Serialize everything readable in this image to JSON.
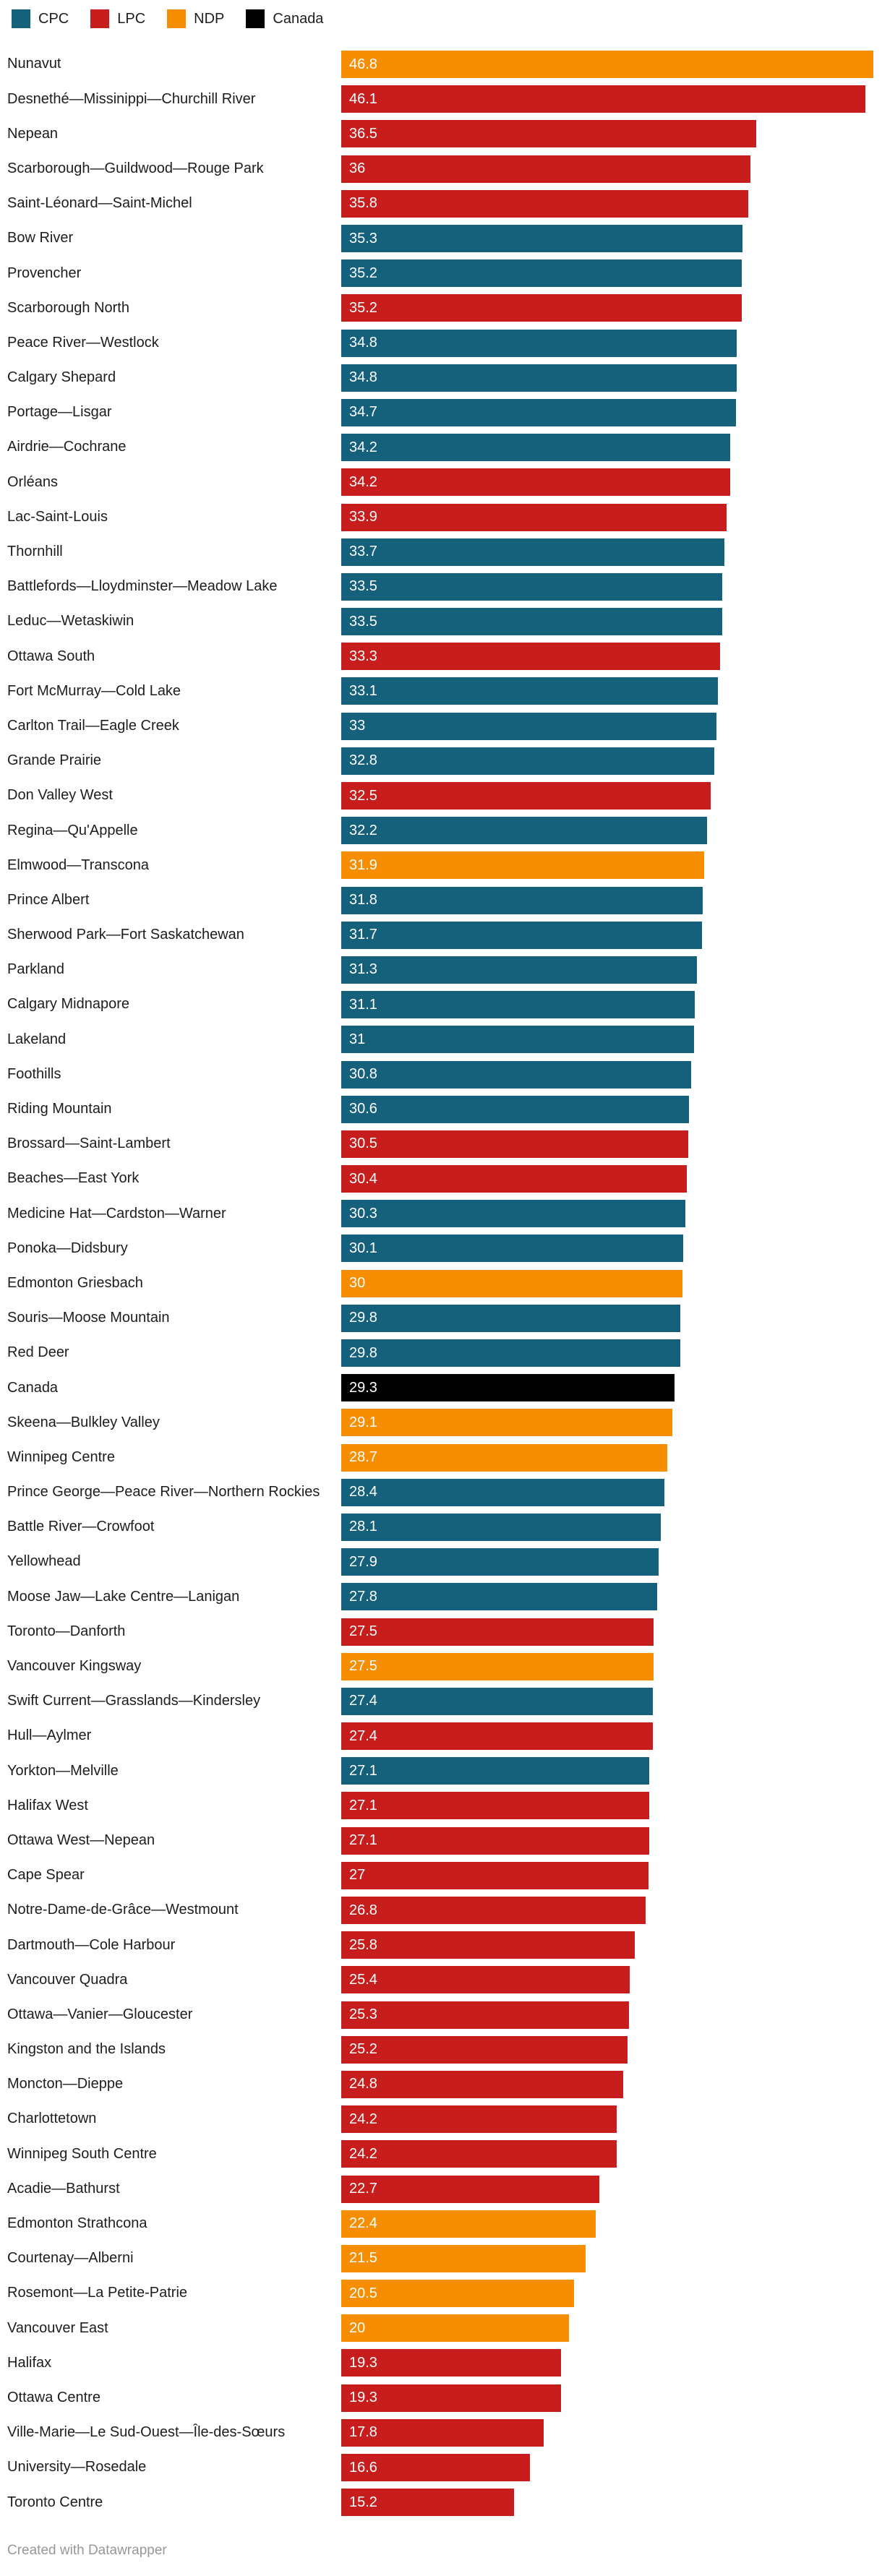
{
  "legend": {
    "items": [
      {
        "id": "CPC",
        "label": "CPC",
        "color": "#15607A"
      },
      {
        "id": "LPC",
        "label": "LPC",
        "color": "#C71E1D"
      },
      {
        "id": "NDP",
        "label": "NDP",
        "color": "#F78D00"
      },
      {
        "id": "Canada",
        "label": "Canada",
        "color": "#000000"
      }
    ]
  },
  "footer": {
    "credit": "Created with Datawrapper"
  },
  "chart_data": {
    "type": "bar",
    "orientation": "horizontal",
    "value_unit": "percent",
    "axis_max": 46.8,
    "grid": false,
    "legend_position": "top-left",
    "party_colors": {
      "CPC": "#15607A",
      "LPC": "#C71E1D",
      "NDP": "#F78D00",
      "Canada": "#000000"
    },
    "rows": [
      {
        "label": "Nunavut",
        "value": 46.8,
        "party": "NDP"
      },
      {
        "label": "Desnethé—Missinippi—Churchill River",
        "value": 46.1,
        "party": "LPC"
      },
      {
        "label": "Nepean",
        "value": 36.5,
        "party": "LPC"
      },
      {
        "label": "Scarborough—Guildwood—Rouge Park",
        "value": 36,
        "party": "LPC"
      },
      {
        "label": "Saint-Léonard—Saint-Michel",
        "value": 35.8,
        "party": "LPC"
      },
      {
        "label": "Bow River",
        "value": 35.3,
        "party": "CPC"
      },
      {
        "label": "Provencher",
        "value": 35.2,
        "party": "CPC"
      },
      {
        "label": "Scarborough North",
        "value": 35.2,
        "party": "LPC"
      },
      {
        "label": "Peace River—Westlock",
        "value": 34.8,
        "party": "CPC"
      },
      {
        "label": "Calgary Shepard",
        "value": 34.8,
        "party": "CPC"
      },
      {
        "label": "Portage—Lisgar",
        "value": 34.7,
        "party": "CPC"
      },
      {
        "label": "Airdrie—Cochrane",
        "value": 34.2,
        "party": "CPC"
      },
      {
        "label": "Orléans",
        "value": 34.2,
        "party": "LPC"
      },
      {
        "label": "Lac-Saint-Louis",
        "value": 33.9,
        "party": "LPC"
      },
      {
        "label": "Thornhill",
        "value": 33.7,
        "party": "CPC"
      },
      {
        "label": "Battlefords—Lloydminster—Meadow Lake",
        "value": 33.5,
        "party": "CPC"
      },
      {
        "label": "Leduc—Wetaskiwin",
        "value": 33.5,
        "party": "CPC"
      },
      {
        "label": "Ottawa South",
        "value": 33.3,
        "party": "LPC"
      },
      {
        "label": "Fort McMurray—Cold Lake",
        "value": 33.1,
        "party": "CPC"
      },
      {
        "label": "Carlton Trail—Eagle Creek",
        "value": 33,
        "party": "CPC"
      },
      {
        "label": "Grande Prairie",
        "value": 32.8,
        "party": "CPC"
      },
      {
        "label": "Don Valley West",
        "value": 32.5,
        "party": "LPC"
      },
      {
        "label": "Regina—Qu'Appelle",
        "value": 32.2,
        "party": "CPC"
      },
      {
        "label": "Elmwood—Transcona",
        "value": 31.9,
        "party": "NDP"
      },
      {
        "label": "Prince Albert",
        "value": 31.8,
        "party": "CPC"
      },
      {
        "label": "Sherwood Park—Fort Saskatchewan",
        "value": 31.7,
        "party": "CPC"
      },
      {
        "label": "Parkland",
        "value": 31.3,
        "party": "CPC"
      },
      {
        "label": "Calgary Midnapore",
        "value": 31.1,
        "party": "CPC"
      },
      {
        "label": "Lakeland",
        "value": 31,
        "party": "CPC"
      },
      {
        "label": "Foothills",
        "value": 30.8,
        "party": "CPC"
      },
      {
        "label": "Riding Mountain",
        "value": 30.6,
        "party": "CPC"
      },
      {
        "label": "Brossard—Saint-Lambert",
        "value": 30.5,
        "party": "LPC"
      },
      {
        "label": "Beaches—East York",
        "value": 30.4,
        "party": "LPC"
      },
      {
        "label": "Medicine Hat—Cardston—Warner",
        "value": 30.3,
        "party": "CPC"
      },
      {
        "label": "Ponoka—Didsbury",
        "value": 30.1,
        "party": "CPC"
      },
      {
        "label": "Edmonton Griesbach",
        "value": 30,
        "party": "NDP"
      },
      {
        "label": "Souris—Moose Mountain",
        "value": 29.8,
        "party": "CPC"
      },
      {
        "label": "Red Deer",
        "value": 29.8,
        "party": "CPC"
      },
      {
        "label": "Canada",
        "value": 29.3,
        "party": "Canada"
      },
      {
        "label": "Skeena—Bulkley Valley",
        "value": 29.1,
        "party": "NDP"
      },
      {
        "label": "Winnipeg Centre",
        "value": 28.7,
        "party": "NDP"
      },
      {
        "label": "Prince George—Peace River—Northern Rockies",
        "value": 28.4,
        "party": "CPC"
      },
      {
        "label": "Battle River—Crowfoot",
        "value": 28.1,
        "party": "CPC"
      },
      {
        "label": "Yellowhead",
        "value": 27.9,
        "party": "CPC"
      },
      {
        "label": "Moose Jaw—Lake Centre—Lanigan",
        "value": 27.8,
        "party": "CPC"
      },
      {
        "label": "Toronto—Danforth",
        "value": 27.5,
        "party": "LPC"
      },
      {
        "label": "Vancouver Kingsway",
        "value": 27.5,
        "party": "NDP"
      },
      {
        "label": "Swift Current—Grasslands—Kindersley",
        "value": 27.4,
        "party": "CPC"
      },
      {
        "label": "Hull—Aylmer",
        "value": 27.4,
        "party": "LPC"
      },
      {
        "label": "Yorkton—Melville",
        "value": 27.1,
        "party": "CPC"
      },
      {
        "label": "Halifax West",
        "value": 27.1,
        "party": "LPC"
      },
      {
        "label": "Ottawa West—Nepean",
        "value": 27.1,
        "party": "LPC"
      },
      {
        "label": "Cape Spear",
        "value": 27,
        "party": "LPC"
      },
      {
        "label": "Notre-Dame-de-Grâce—Westmount",
        "value": 26.8,
        "party": "LPC"
      },
      {
        "label": "Dartmouth—Cole Harbour",
        "value": 25.8,
        "party": "LPC"
      },
      {
        "label": "Vancouver Quadra",
        "value": 25.4,
        "party": "LPC"
      },
      {
        "label": "Ottawa—Vanier—Gloucester",
        "value": 25.3,
        "party": "LPC"
      },
      {
        "label": "Kingston and the Islands",
        "value": 25.2,
        "party": "LPC"
      },
      {
        "label": "Moncton—Dieppe",
        "value": 24.8,
        "party": "LPC"
      },
      {
        "label": "Charlottetown",
        "value": 24.2,
        "party": "LPC"
      },
      {
        "label": "Winnipeg South Centre",
        "value": 24.2,
        "party": "LPC"
      },
      {
        "label": "Acadie—Bathurst",
        "value": 22.7,
        "party": "LPC"
      },
      {
        "label": "Edmonton Strathcona",
        "value": 22.4,
        "party": "NDP"
      },
      {
        "label": "Courtenay—Alberni",
        "value": 21.5,
        "party": "NDP"
      },
      {
        "label": "Rosemont—La Petite-Patrie",
        "value": 20.5,
        "party": "NDP"
      },
      {
        "label": "Vancouver East",
        "value": 20,
        "party": "NDP"
      },
      {
        "label": "Halifax",
        "value": 19.3,
        "party": "LPC"
      },
      {
        "label": "Ottawa Centre",
        "value": 19.3,
        "party": "LPC"
      },
      {
        "label": "Ville-Marie—Le Sud-Ouest—Île-des-Sœurs",
        "value": 17.8,
        "party": "LPC"
      },
      {
        "label": "University—Rosedale",
        "value": 16.6,
        "party": "LPC"
      },
      {
        "label": "Toronto Centre",
        "value": 15.2,
        "party": "LPC"
      }
    ]
  }
}
